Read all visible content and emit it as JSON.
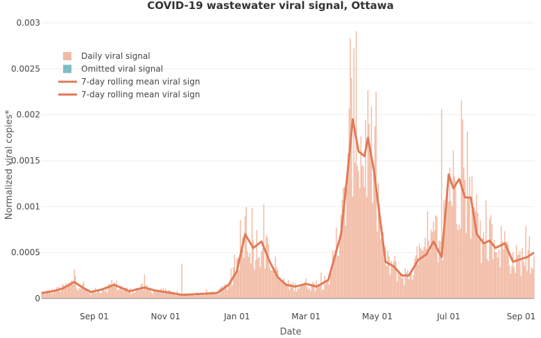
{
  "chart_data": {
    "type": "bar",
    "title": "COVID-19 wastewater viral signal, Ottawa",
    "xlabel": "Date",
    "ylabel": "Normalized viral copies*",
    "ylim": [
      0,
      0.003
    ],
    "y_ticks": [
      "0",
      "0.0005",
      "0.001",
      "0.0015",
      "0.002",
      "0.0025",
      "0.003"
    ],
    "x_ticks": [
      "Sep 01",
      "Nov 01",
      "Jan 01",
      "Mar 01",
      "May 01",
      "Jul 01",
      "Sep 01"
    ],
    "grid": true,
    "legend_position": "top-left",
    "legend": [
      {
        "name": "Daily viral signal",
        "kind": "swatch",
        "color": "#f2bba5"
      },
      {
        "name": "Omitted viral signal",
        "kind": "swatch",
        "color": "#7fbdc4"
      },
      {
        "name": "7-day rolling mean viral sign",
        "kind": "line",
        "color": "#e07a56"
      },
      {
        "name": "7-day rolling mean viral sign",
        "kind": "line",
        "color": "#e07a56"
      }
    ],
    "colors": {
      "bars": "#f2bba5",
      "line": "#e07a56",
      "grid": "#eeeeee",
      "axis": "#888888"
    },
    "series": [
      {
        "name": "7-day rolling mean viral sign",
        "type": "line",
        "dates": [
          "2020-07-18",
          "2020-07-28",
          "2020-08-05",
          "2020-08-15",
          "2020-08-22",
          "2020-08-29",
          "2020-09-08",
          "2020-09-18",
          "2020-10-01",
          "2020-10-14",
          "2020-10-22",
          "2020-11-01",
          "2020-11-15",
          "2020-12-01",
          "2020-12-15",
          "2020-12-25",
          "2021-01-01",
          "2021-01-08",
          "2021-01-15",
          "2021-01-22",
          "2021-01-29",
          "2021-02-05",
          "2021-02-12",
          "2021-02-20",
          "2021-03-01",
          "2021-03-10",
          "2021-03-20",
          "2021-03-31",
          "2021-04-05",
          "2021-04-10",
          "2021-04-15",
          "2021-04-20",
          "2021-04-23",
          "2021-04-28",
          "2021-05-03",
          "2021-05-08",
          "2021-05-15",
          "2021-05-22",
          "2021-05-28",
          "2021-06-05",
          "2021-06-12",
          "2021-06-18",
          "2021-06-25",
          "2021-07-01",
          "2021-07-05",
          "2021-07-10",
          "2021-07-15",
          "2021-07-20",
          "2021-07-25",
          "2021-07-31",
          "2021-08-05",
          "2021-08-10",
          "2021-08-18",
          "2021-08-25",
          "2021-09-01",
          "2021-09-06",
          "2021-09-12"
        ],
        "values": [
          6e-05,
          8e-05,
          0.00011,
          0.00018,
          0.00012,
          7e-05,
          0.0001,
          0.00015,
          8e-05,
          0.00012,
          9e-05,
          7e-05,
          4e-05,
          5e-05,
          6e-05,
          0.00015,
          0.0003,
          0.0007,
          0.00055,
          0.00062,
          0.0004,
          0.00023,
          0.00015,
          0.00013,
          0.00016,
          0.00013,
          0.0002,
          0.0007,
          0.0013,
          0.00195,
          0.0016,
          0.00155,
          0.00175,
          0.0014,
          0.0009,
          0.0004,
          0.00035,
          0.00025,
          0.00025,
          0.00042,
          0.00048,
          0.00062,
          0.00045,
          0.00135,
          0.0012,
          0.0013,
          0.0011,
          0.0011,
          0.0007,
          0.0006,
          0.00063,
          0.00055,
          0.0006,
          0.0004,
          0.00043,
          0.00045,
          0.0005
        ]
      },
      {
        "name": "Daily viral signal",
        "type": "bar",
        "start_date": "2020-07-18",
        "end_date": "2021-09-12",
        "peaks": [
          {
            "date": "2020-08-15",
            "value": 0.00032
          },
          {
            "date": "2020-10-14",
            "value": 0.00026
          },
          {
            "date": "2020-11-15",
            "value": 0.00038
          },
          {
            "date": "2021-01-08",
            "value": 0.0009
          },
          {
            "date": "2021-04-08",
            "value": 0.00283
          },
          {
            "date": "2021-04-13",
            "value": 0.00291
          },
          {
            "date": "2021-04-24",
            "value": 0.0019
          },
          {
            "date": "2021-06-25",
            "value": 0.00206
          },
          {
            "date": "2021-07-12",
            "value": 0.00216
          },
          {
            "date": "2021-09-08",
            "value": 0.00068
          }
        ]
      }
    ]
  }
}
